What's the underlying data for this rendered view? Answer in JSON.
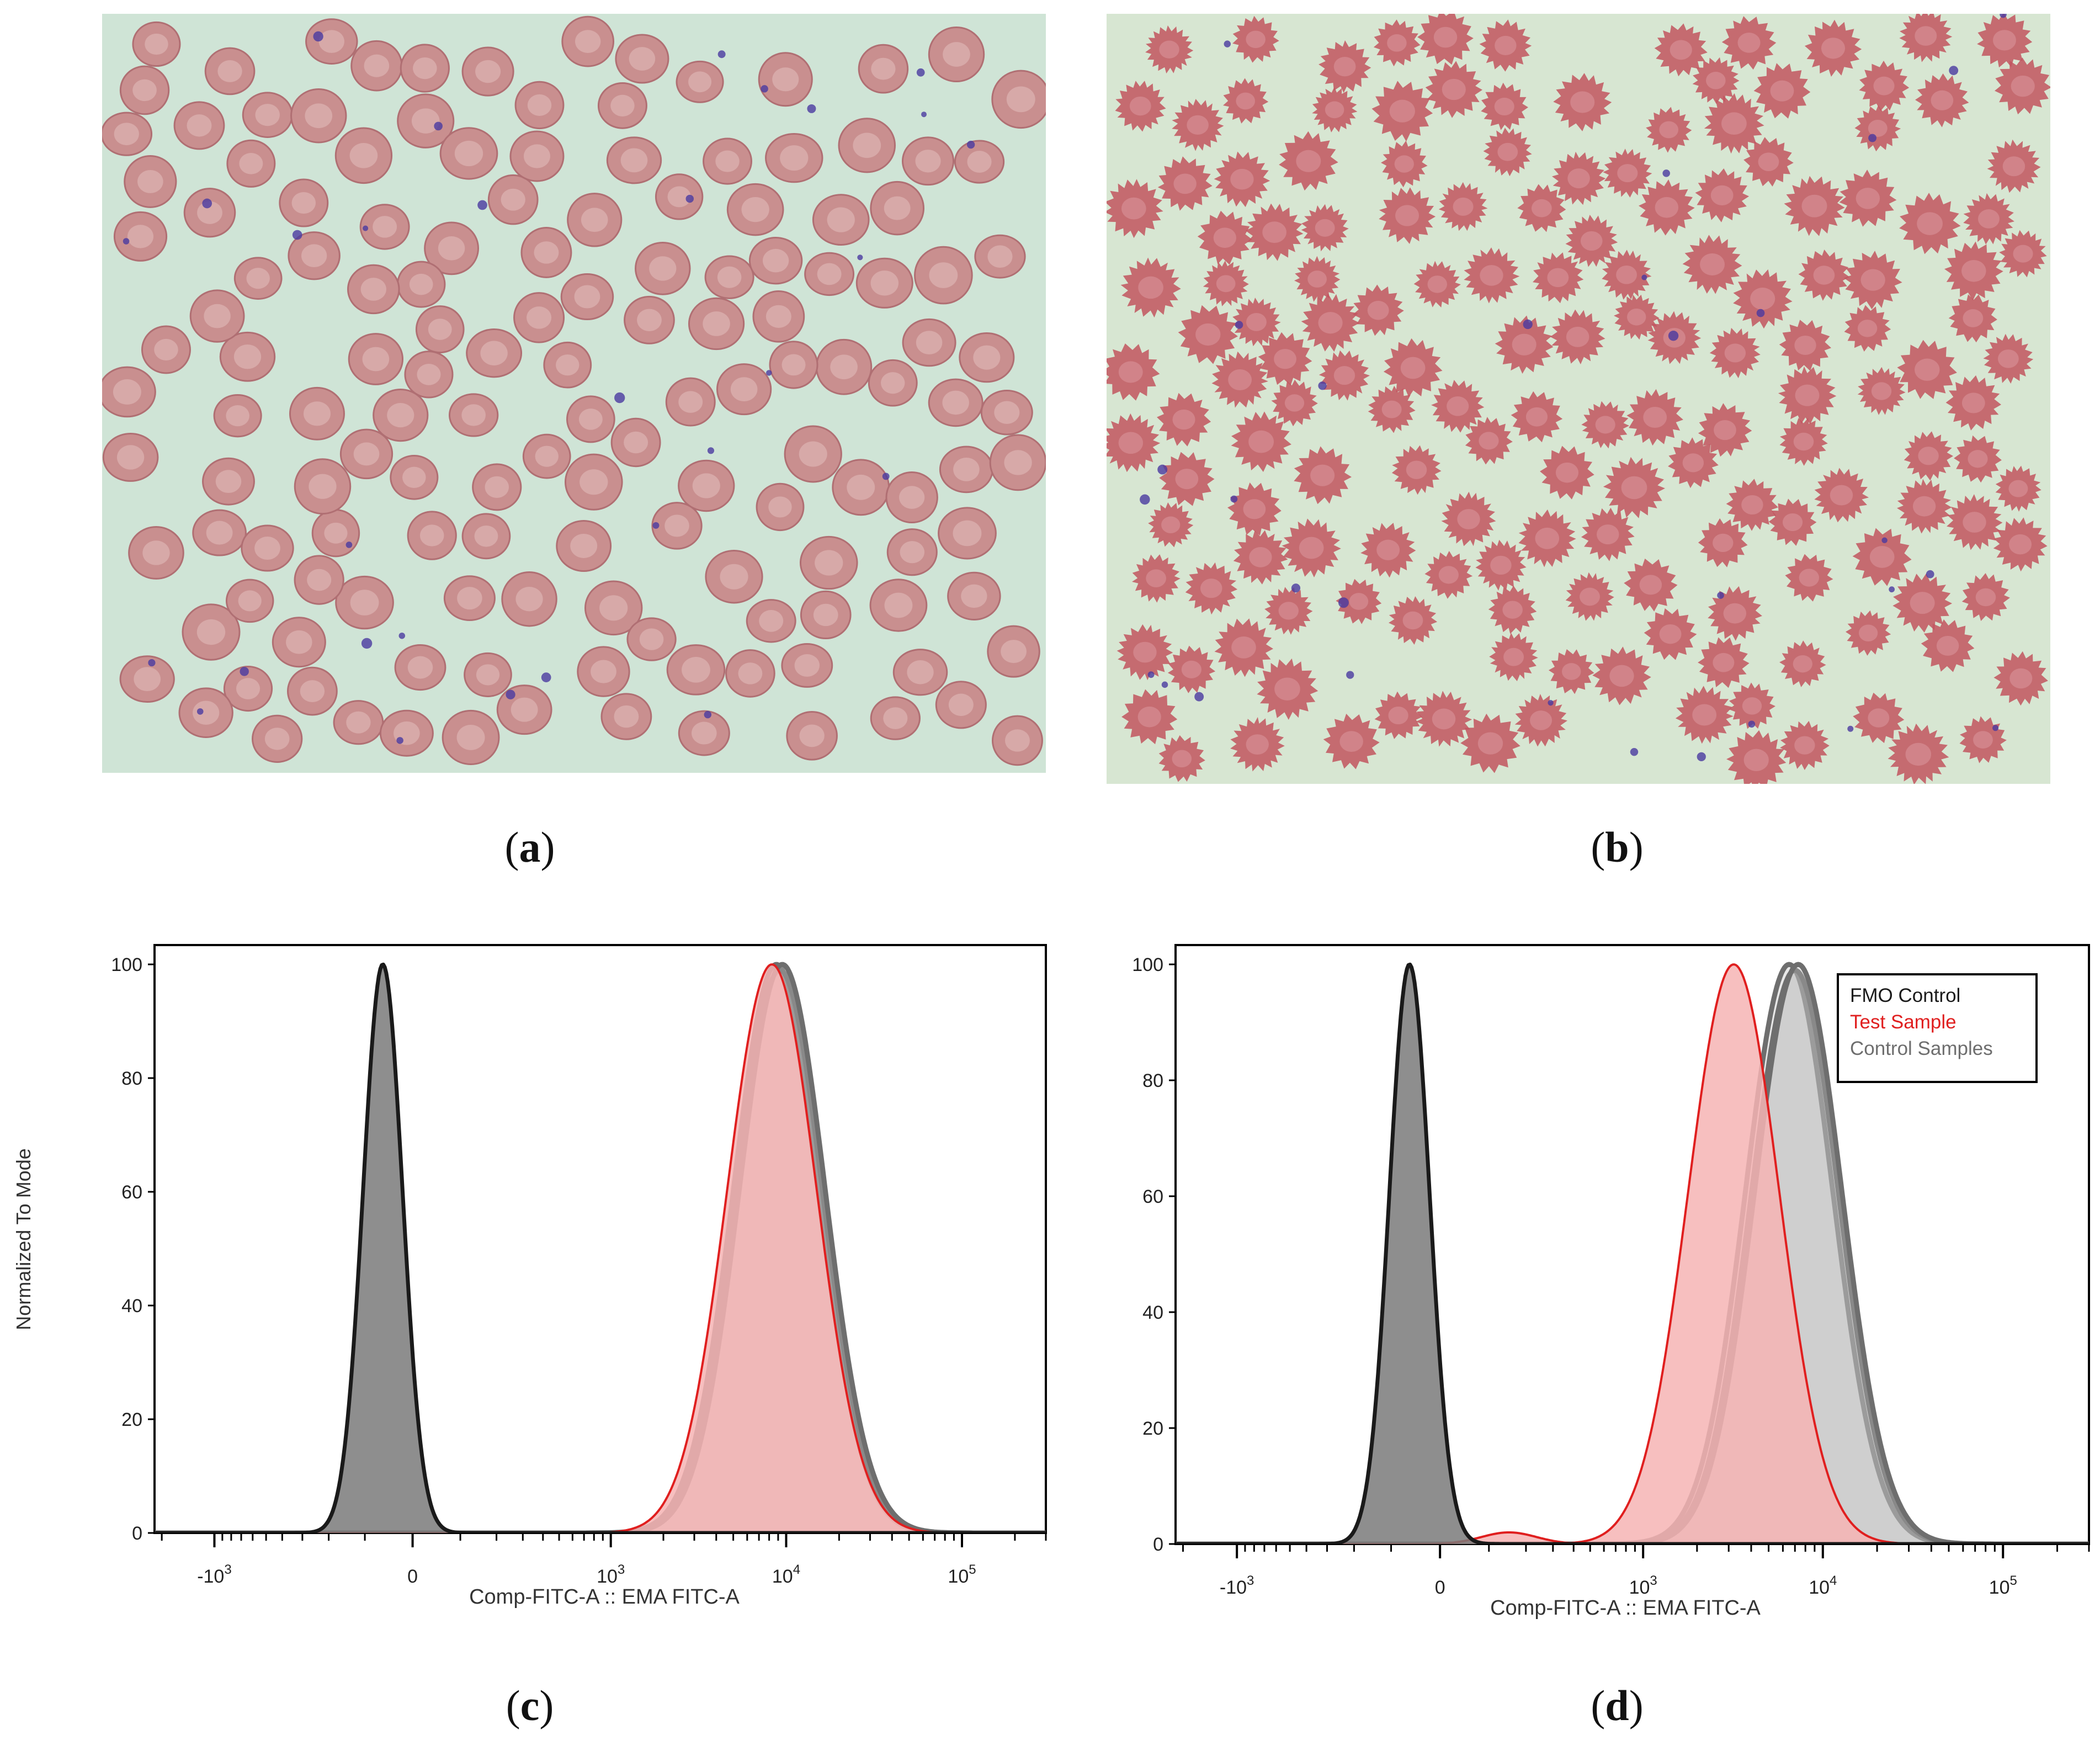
{
  "panels": {
    "a": {
      "label": "a",
      "subject": "blood smear photograph"
    },
    "b": {
      "label": "b",
      "subject": "blood smear photograph"
    }
  },
  "colors": {
    "fmo": "#1a1a1a",
    "test": "#e01f1f",
    "test_fill": "#f6b4b4",
    "control": "#6e6e6e",
    "smear_bg_a": "#cfe4d6",
    "smear_bg_b": "#d7e6d2",
    "cell": "#c98f8f"
  },
  "chart_data": [
    {
      "panel_label": "c",
      "type": "line",
      "xlabel": "Comp-FITC-A :: EMA FITC-A",
      "ylabel": "Normalized To Mode",
      "ylim": [
        0,
        100
      ],
      "y_ticks": [
        "0",
        "20",
        "40",
        "60",
        "80",
        "100"
      ],
      "x_ticks": [
        {
          "base": "-10",
          "exp": "3",
          "value": -1000
        },
        {
          "base": "0",
          "exp": "",
          "value": 0
        },
        {
          "base": "10",
          "exp": "3",
          "value": 1000
        },
        {
          "base": "10",
          "exp": "4",
          "value": 10000
        },
        {
          "base": "10",
          "exp": "5",
          "value": 100000
        }
      ],
      "x_scale": "biexponential",
      "grid": false,
      "legend": null,
      "series": [
        {
          "role": "fmo",
          "peaks": [
            {
              "center": -60,
              "height": 100
            }
          ]
        },
        {
          "role": "test",
          "peaks": [
            {
              "center": 8300,
              "height": 100
            },
            {
              "center": 16000,
              "height": 2
            }
          ]
        },
        {
          "role": "control",
          "peaks": [
            {
              "center": 8800,
              "height": 100
            },
            {
              "center": 17000,
              "height": 3
            }
          ]
        },
        {
          "role": "control",
          "peaks": [
            {
              "center": 9200,
              "height": 99
            }
          ]
        },
        {
          "role": "control",
          "peaks": [
            {
              "center": 9500,
              "height": 100
            }
          ]
        }
      ]
    },
    {
      "panel_label": "d",
      "type": "line",
      "xlabel": "Comp-FITC-A :: EMA FITC-A",
      "ylabel": "",
      "ylim": [
        0,
        100
      ],
      "y_ticks": [
        "0",
        "20",
        "40",
        "60",
        "80",
        "100"
      ],
      "x_ticks": [
        {
          "base": "-10",
          "exp": "3",
          "value": -1000
        },
        {
          "base": "0",
          "exp": "",
          "value": 0
        },
        {
          "base": "10",
          "exp": "3",
          "value": 1000
        },
        {
          "base": "10",
          "exp": "4",
          "value": 10000
        },
        {
          "base": "10",
          "exp": "5",
          "value": 100000
        }
      ],
      "x_scale": "biexponential",
      "grid": false,
      "legend_position": "top-right",
      "legend": [
        {
          "name": "FMO Control",
          "role": "fmo"
        },
        {
          "name": "Test Sample",
          "role": "test"
        },
        {
          "name": "Control Samples",
          "role": "control"
        }
      ],
      "series": [
        {
          "role": "fmo",
          "peaks": [
            {
              "center": -60,
              "height": 100
            }
          ]
        },
        {
          "role": "test",
          "peaks": [
            {
              "center": 3200,
              "height": 100
            },
            {
              "center": 6000,
              "height": 4
            },
            {
              "center": 150,
              "height": 2
            }
          ]
        },
        {
          "role": "control",
          "peaks": [
            {
              "center": 6500,
              "height": 100
            },
            {
              "center": 13000,
              "height": 2
            }
          ]
        },
        {
          "role": "control",
          "peaks": [
            {
              "center": 7000,
              "height": 99
            }
          ]
        },
        {
          "role": "control",
          "peaks": [
            {
              "center": 7300,
              "height": 100
            },
            {
              "center": 14000,
              "height": 2
            }
          ]
        }
      ]
    }
  ]
}
